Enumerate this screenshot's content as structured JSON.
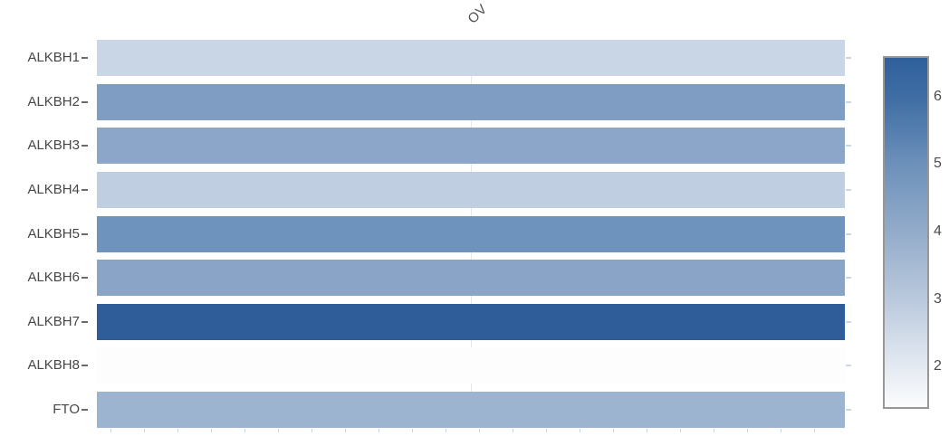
{
  "chart_data": {
    "type": "heatmap",
    "title": "",
    "x_categories": [
      "OV"
    ],
    "y_categories": [
      "ALKBH1",
      "ALKBH2",
      "ALKBH3",
      "ALKBH4",
      "ALKBH5",
      "ALKBH6",
      "ALKBH7",
      "ALKBH8",
      "FTO"
    ],
    "values": [
      [
        2.7
      ],
      [
        4.7
      ],
      [
        4.4
      ],
      [
        3.0
      ],
      [
        5.0
      ],
      [
        4.4
      ],
      [
        6.6
      ],
      [
        1.4
      ],
      [
        3.9
      ]
    ],
    "cell_colors": [
      [
        "#c9d6e5"
      ],
      [
        "#7f9dc2"
      ],
      [
        "#8ba6c8"
      ],
      [
        "#bfcfe1"
      ],
      [
        "#6e93bc"
      ],
      [
        "#89a4c7"
      ],
      [
        "#2e5d9a"
      ],
      [
        "#fdfdfe"
      ],
      [
        "#9db4d0"
      ]
    ],
    "grid": "single-center-column-gridline",
    "legend_position": "right",
    "colorbar": {
      "min": 1.4,
      "max": 6.6,
      "ticks": [
        6,
        5,
        4,
        3,
        2
      ],
      "gradient": [
        {
          "v": 6.6,
          "color": "#30609c"
        },
        {
          "v": 6.0,
          "color": "#3f6da4"
        },
        {
          "v": 5.0,
          "color": "#6d91ba"
        },
        {
          "v": 4.0,
          "color": "#93acca"
        },
        {
          "v": 3.0,
          "color": "#bac9dd"
        },
        {
          "v": 2.0,
          "color": "#e4eaf2"
        },
        {
          "v": 1.4,
          "color": "#fbfcfd"
        }
      ],
      "border_color": "#979797"
    }
  }
}
